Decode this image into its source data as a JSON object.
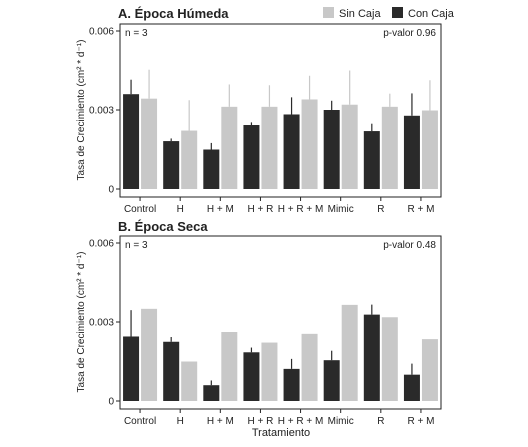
{
  "legend": {
    "position": "top-right",
    "items": [
      {
        "label": "Sin Caja",
        "color": "#c8c8c8"
      },
      {
        "label": "Con Caja",
        "color": "#2a2a2a"
      }
    ]
  },
  "figure": {
    "xlabel": "Tratamiento"
  },
  "chart_data": [
    {
      "type": "bar",
      "title": "A. Época Húmeda",
      "n_label": "n = 3",
      "pvalue_label": "p-valor 0.96",
      "ylabel": "Tasa de Crecimiento (cm² * d⁻¹)",
      "xlabel": "",
      "ylim": [
        0,
        0.006
      ],
      "yticks": [
        0,
        0.003,
        0.006
      ],
      "ytick_labels": [
        "0",
        "0.003",
        "0.006"
      ],
      "grid": false,
      "categories": [
        "Control",
        "H",
        "H + M",
        "H + R",
        "H + R + M",
        "Mimic",
        "R",
        "R + M"
      ],
      "series": [
        {
          "name": "Con Caja",
          "color": "#2a2a2a",
          "values": [
            0.0036,
            0.00182,
            0.0015,
            0.00243,
            0.00283,
            0.003,
            0.0022,
            0.00278
          ],
          "errors": [
            0.00055,
            0.0001,
            0.00025,
            0.0001,
            0.00065,
            0.00035,
            0.00028,
            0.00085
          ]
        },
        {
          "name": "Sin Caja",
          "color": "#c8c8c8",
          "values": [
            0.00343,
            0.00222,
            0.00312,
            0.00312,
            0.0034,
            0.0032,
            0.00312,
            0.00298
          ],
          "errors": [
            0.0011,
            0.00115,
            0.00085,
            0.00082,
            0.0009,
            0.0013,
            0.0005,
            0.00115
          ]
        }
      ]
    },
    {
      "type": "bar",
      "title": "B. Época Seca",
      "n_label": "n = 3",
      "pvalue_label": "p-valor 0.48",
      "ylabel": "Tasa de Crecimiento (cm² * d⁻¹)",
      "xlabel": "Tratamiento",
      "ylim": [
        0,
        0.006
      ],
      "yticks": [
        0,
        0.003,
        0.006
      ],
      "ytick_labels": [
        "0",
        "0.003",
        "0.006"
      ],
      "grid": false,
      "categories": [
        "Control",
        "H",
        "H + M",
        "H + R",
        "H + R + M",
        "Mimic",
        "R",
        "R + M"
      ],
      "series": [
        {
          "name": "Con Caja",
          "color": "#2a2a2a",
          "values": [
            0.00245,
            0.00225,
            0.0006,
            0.00185,
            0.00122,
            0.00155,
            0.00328,
            0.001
          ],
          "errors": [
            0.001,
            0.00018,
            0.00018,
            0.00018,
            0.00038,
            0.00036,
            0.00038,
            0.00042
          ]
        },
        {
          "name": "Sin Caja",
          "color": "#c8c8c8",
          "values": [
            0.0035,
            0.0015,
            0.00262,
            0.00222,
            0.00255,
            0.00365,
            0.00318,
            0.00235
          ]
        }
      ]
    }
  ]
}
